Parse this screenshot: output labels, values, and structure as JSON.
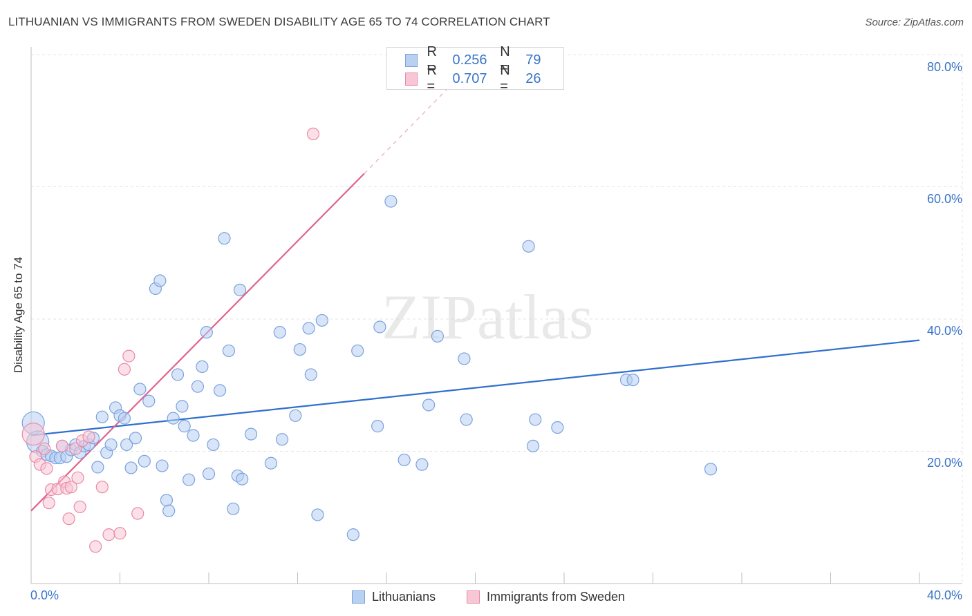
{
  "header": {
    "title": "LITHUANIAN VS IMMIGRANTS FROM SWEDEN DISABILITY AGE 65 TO 74 CORRELATION CHART",
    "source": "Source: ZipAtlas.com"
  },
  "watermark": "ZIPatlas",
  "legend_top": {
    "rows": [
      {
        "r_label": "R =",
        "r_value": "0.256",
        "n_label": "N =",
        "n_value": "79"
      },
      {
        "r_label": "R =",
        "r_value": "0.707",
        "n_label": "N =",
        "n_value": "26"
      }
    ]
  },
  "legend_bottom": {
    "items": [
      {
        "label": "Lithuanians"
      },
      {
        "label": "Immigrants from Sweden"
      }
    ]
  },
  "colors": {
    "blue_fill": "#b8d0f2",
    "blue_stroke": "#7aa2dd",
    "blue_line": "#2f6fce",
    "pink_fill": "#f7c7d6",
    "pink_stroke": "#e98aaa",
    "pink_line": "#e2628c",
    "grid": "#e3e3e3",
    "axis_text": "#3a74c9"
  },
  "chart_data": {
    "type": "scatter",
    "title": "LITHUANIAN VS IMMIGRANTS FROM SWEDEN DISABILITY AGE 65 TO 74 CORRELATION CHART",
    "xlabel": "",
    "ylabel": "Disability Age 65 to 74",
    "xlim": [
      0,
      40
    ],
    "ylim": [
      0,
      80
    ],
    "x_tick_labels": [
      "0.0%",
      "40.0%"
    ],
    "y_tick_labels": [
      "20.0%",
      "40.0%",
      "60.0%",
      "80.0%"
    ],
    "y_ticks": [
      20,
      40,
      60,
      80
    ],
    "grid": true,
    "series": [
      {
        "name": "Lithuanians",
        "color": "#7aa2dd",
        "r": "0.256",
        "n": "79",
        "trend": {
          "x": [
            0,
            40
          ],
          "y": [
            22.4,
            36.8
          ],
          "dashed_extension": false
        },
        "points": [
          {
            "x": 0.1,
            "y": 24.3,
            "big": true
          },
          {
            "x": 0.3,
            "y": 21.4,
            "big": true
          },
          {
            "x": 0.5,
            "y": 20.0
          },
          {
            "x": 0.7,
            "y": 19.5
          },
          {
            "x": 0.9,
            "y": 19.3
          },
          {
            "x": 1.1,
            "y": 19.0
          },
          {
            "x": 1.3,
            "y": 19.0
          },
          {
            "x": 1.4,
            "y": 20.8
          },
          {
            "x": 1.6,
            "y": 19.2
          },
          {
            "x": 1.8,
            "y": 20.2
          },
          {
            "x": 2.0,
            "y": 21.0
          },
          {
            "x": 2.2,
            "y": 19.8
          },
          {
            "x": 2.4,
            "y": 20.8
          },
          {
            "x": 2.6,
            "y": 21.0
          },
          {
            "x": 2.8,
            "y": 22.0
          },
          {
            "x": 3.0,
            "y": 17.6
          },
          {
            "x": 3.2,
            "y": 25.2
          },
          {
            "x": 3.4,
            "y": 19.8
          },
          {
            "x": 3.6,
            "y": 21.0
          },
          {
            "x": 3.8,
            "y": 26.6
          },
          {
            "x": 4.0,
            "y": 25.4
          },
          {
            "x": 4.2,
            "y": 25.0
          },
          {
            "x": 4.3,
            "y": 21.0
          },
          {
            "x": 4.5,
            "y": 17.5
          },
          {
            "x": 4.7,
            "y": 22.0
          },
          {
            "x": 4.9,
            "y": 29.4
          },
          {
            "x": 5.1,
            "y": 18.5
          },
          {
            "x": 5.3,
            "y": 27.6
          },
          {
            "x": 5.6,
            "y": 44.6
          },
          {
            "x": 5.8,
            "y": 45.8
          },
          {
            "x": 5.9,
            "y": 17.8
          },
          {
            "x": 6.1,
            "y": 12.6
          },
          {
            "x": 6.2,
            "y": 11.0
          },
          {
            "x": 6.4,
            "y": 25.0
          },
          {
            "x": 6.6,
            "y": 31.6
          },
          {
            "x": 6.8,
            "y": 26.8
          },
          {
            "x": 6.9,
            "y": 23.8
          },
          {
            "x": 7.1,
            "y": 15.7
          },
          {
            "x": 7.3,
            "y": 22.4
          },
          {
            "x": 7.5,
            "y": 29.8
          },
          {
            "x": 7.7,
            "y": 32.8
          },
          {
            "x": 7.9,
            "y": 38.0
          },
          {
            "x": 8.0,
            "y": 16.6
          },
          {
            "x": 8.2,
            "y": 21.0
          },
          {
            "x": 8.5,
            "y": 29.2
          },
          {
            "x": 8.7,
            "y": 52.2
          },
          {
            "x": 8.9,
            "y": 35.2
          },
          {
            "x": 9.1,
            "y": 11.3
          },
          {
            "x": 9.3,
            "y": 16.3
          },
          {
            "x": 9.4,
            "y": 44.4
          },
          {
            "x": 9.5,
            "y": 15.8
          },
          {
            "x": 9.9,
            "y": 22.6
          },
          {
            "x": 10.8,
            "y": 18.2
          },
          {
            "x": 11.2,
            "y": 38.0
          },
          {
            "x": 11.3,
            "y": 21.8
          },
          {
            "x": 11.9,
            "y": 25.4
          },
          {
            "x": 12.1,
            "y": 35.4
          },
          {
            "x": 12.5,
            "y": 38.6
          },
          {
            "x": 12.6,
            "y": 31.6
          },
          {
            "x": 12.9,
            "y": 10.4
          },
          {
            "x": 13.1,
            "y": 39.8
          },
          {
            "x": 14.5,
            "y": 7.4
          },
          {
            "x": 14.7,
            "y": 35.2
          },
          {
            "x": 15.6,
            "y": 23.8
          },
          {
            "x": 15.7,
            "y": 38.8
          },
          {
            "x": 16.2,
            "y": 57.8
          },
          {
            "x": 16.8,
            "y": 18.7
          },
          {
            "x": 17.6,
            "y": 18.0
          },
          {
            "x": 17.9,
            "y": 27.0
          },
          {
            "x": 18.3,
            "y": 37.4
          },
          {
            "x": 19.5,
            "y": 34.0
          },
          {
            "x": 19.6,
            "y": 24.8
          },
          {
            "x": 22.4,
            "y": 51.0
          },
          {
            "x": 22.6,
            "y": 20.8
          },
          {
            "x": 22.7,
            "y": 24.8
          },
          {
            "x": 23.7,
            "y": 23.6
          },
          {
            "x": 26.8,
            "y": 30.8
          },
          {
            "x": 27.1,
            "y": 30.8
          },
          {
            "x": 30.6,
            "y": 17.3
          }
        ]
      },
      {
        "name": "Immigrants from Sweden",
        "color": "#e98aaa",
        "r": "0.707",
        "n": "26",
        "trend": {
          "x": [
            0,
            15.0
          ],
          "y": [
            11.0,
            62.0
          ],
          "dashed_extension": true,
          "dashed_to": {
            "x": 18.8,
            "y": 75.0
          }
        },
        "points": [
          {
            "x": 0.1,
            "y": 22.6,
            "big": true
          },
          {
            "x": 0.2,
            "y": 19.2
          },
          {
            "x": 0.4,
            "y": 18.0
          },
          {
            "x": 0.6,
            "y": 20.4
          },
          {
            "x": 0.7,
            "y": 17.4
          },
          {
            "x": 0.8,
            "y": 12.2
          },
          {
            "x": 0.9,
            "y": 14.2
          },
          {
            "x": 1.2,
            "y": 14.3
          },
          {
            "x": 1.4,
            "y": 20.8
          },
          {
            "x": 1.5,
            "y": 15.4
          },
          {
            "x": 1.6,
            "y": 14.4
          },
          {
            "x": 1.7,
            "y": 9.8
          },
          {
            "x": 1.8,
            "y": 14.6
          },
          {
            "x": 2.0,
            "y": 20.4
          },
          {
            "x": 2.1,
            "y": 16.0
          },
          {
            "x": 2.2,
            "y": 11.6
          },
          {
            "x": 2.3,
            "y": 21.6
          },
          {
            "x": 2.6,
            "y": 22.2
          },
          {
            "x": 2.9,
            "y": 5.6
          },
          {
            "x": 3.2,
            "y": 14.6
          },
          {
            "x": 3.5,
            "y": 7.4
          },
          {
            "x": 4.0,
            "y": 7.6
          },
          {
            "x": 4.2,
            "y": 32.4
          },
          {
            "x": 4.4,
            "y": 34.4
          },
          {
            "x": 4.8,
            "y": 10.6
          },
          {
            "x": 12.7,
            "y": 68.0
          }
        ]
      }
    ]
  }
}
